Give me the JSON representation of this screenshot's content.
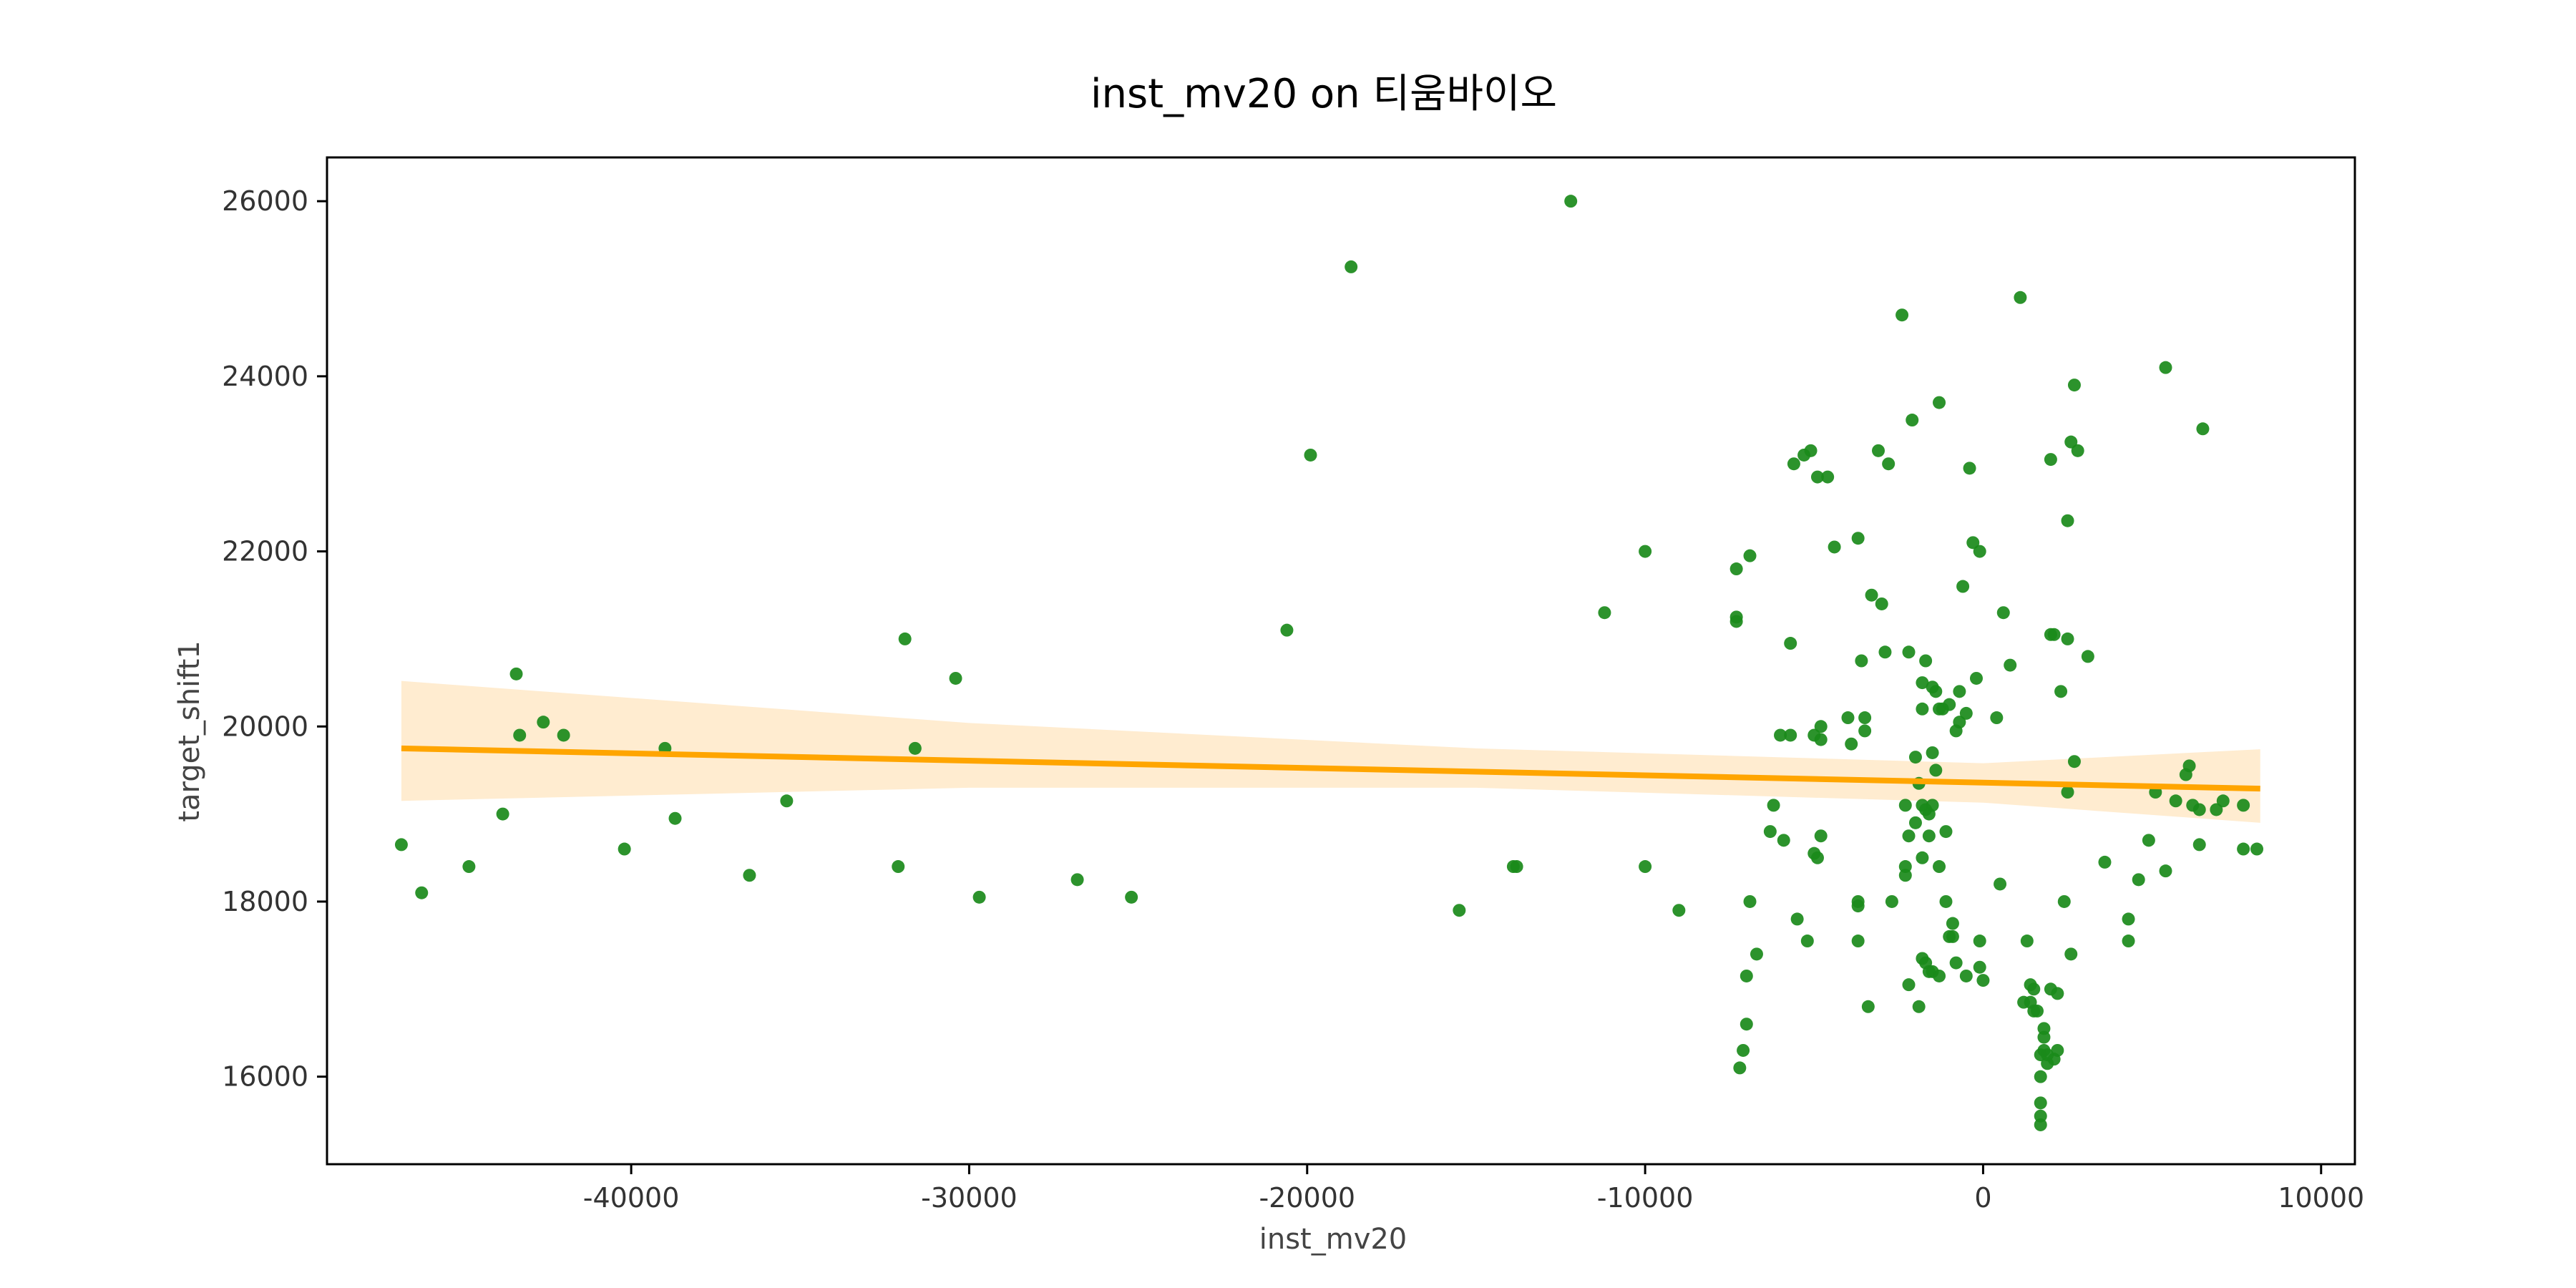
{
  "chart_data": {
    "type": "scatter",
    "title": "inst_mv20 on 티움바이오",
    "xlabel": "inst_mv20",
    "ylabel": "target_shift1",
    "xlim": [
      -49000,
      11000
    ],
    "ylim": [
      15000,
      26500
    ],
    "xticks": [
      -40000,
      -30000,
      -20000,
      -10000,
      0,
      10000
    ],
    "xtick_labels": [
      "-40000",
      "-30000",
      "-20000",
      "-10000",
      "0",
      "10000"
    ],
    "yticks": [
      16000,
      18000,
      20000,
      22000,
      24000,
      26000
    ],
    "ytick_labels": [
      "16000",
      "18000",
      "20000",
      "22000",
      "24000",
      "26000"
    ],
    "grid": false,
    "colors": {
      "points": "#1a8a1a",
      "regression": "#ffa500",
      "confidence_band": "#ffecd0"
    },
    "regression_line": {
      "x": [
        -46800,
        8200
      ],
      "y": [
        19750,
        19290
      ]
    },
    "confidence_band": {
      "x": [
        -46800,
        -30000,
        -15000,
        0,
        8200
      ],
      "lower": [
        19150,
        19300,
        19300,
        19130,
        18900
      ],
      "upper": [
        20520,
        20040,
        19750,
        19580,
        19740
      ]
    },
    "points": [
      [
        -46800,
        18650
      ],
      [
        -46200,
        18100
      ],
      [
        -44800,
        18400
      ],
      [
        -43800,
        19000
      ],
      [
        -43400,
        20600
      ],
      [
        -43300,
        19900
      ],
      [
        -42600,
        20050
      ],
      [
        -42000,
        19900
      ],
      [
        -40200,
        18600
      ],
      [
        -39000,
        19750
      ],
      [
        -38700,
        18950
      ],
      [
        -36500,
        18300
      ],
      [
        -35400,
        19150
      ],
      [
        -32100,
        18400
      ],
      [
        -31900,
        21000
      ],
      [
        -31600,
        19750
      ],
      [
        -30400,
        20550
      ],
      [
        -29700,
        18050
      ],
      [
        -26800,
        18250
      ],
      [
        -25200,
        18050
      ],
      [
        -20600,
        21100
      ],
      [
        -19900,
        23100
      ],
      [
        -18700,
        25250
      ],
      [
        -15500,
        17900
      ],
      [
        -13900,
        18400
      ],
      [
        -13800,
        18400
      ],
      [
        -12200,
        26000
      ],
      [
        -11200,
        21300
      ],
      [
        -10000,
        22000
      ],
      [
        -10000,
        18400
      ],
      [
        -9000,
        17900
      ],
      [
        -7300,
        21800
      ],
      [
        -7300,
        21250
      ],
      [
        -7300,
        21200
      ],
      [
        -7200,
        16100
      ],
      [
        -7100,
        16300
      ],
      [
        -7000,
        16600
      ],
      [
        -7000,
        17150
      ],
      [
        -6900,
        21950
      ],
      [
        -6900,
        18000
      ],
      [
        -6700,
        17400
      ],
      [
        -6300,
        18800
      ],
      [
        -6200,
        19100
      ],
      [
        -6000,
        19900
      ],
      [
        -5900,
        18700
      ],
      [
        -5700,
        20950
      ],
      [
        -5700,
        19900
      ],
      [
        -5600,
        23000
      ],
      [
        -5500,
        17800
      ],
      [
        -5300,
        23100
      ],
      [
        -5200,
        17550
      ],
      [
        -5100,
        23150
      ],
      [
        -5000,
        19900
      ],
      [
        -5000,
        18550
      ],
      [
        -4900,
        18500
      ],
      [
        -4900,
        22850
      ],
      [
        -4800,
        20000
      ],
      [
        -4800,
        19850
      ],
      [
        -4800,
        18750
      ],
      [
        -4600,
        22850
      ],
      [
        -4400,
        22050
      ],
      [
        -4000,
        20100
      ],
      [
        -3900,
        19800
      ],
      [
        -3700,
        22150
      ],
      [
        -3700,
        18000
      ],
      [
        -3700,
        17950
      ],
      [
        -3700,
        17550
      ],
      [
        -3600,
        20750
      ],
      [
        -3500,
        20100
      ],
      [
        -3500,
        19950
      ],
      [
        -3400,
        16800
      ],
      [
        -3300,
        21500
      ],
      [
        -3100,
        23150
      ],
      [
        -3000,
        21400
      ],
      [
        -2900,
        20850
      ],
      [
        -2800,
        23000
      ],
      [
        -2700,
        18000
      ],
      [
        -2400,
        24700
      ],
      [
        -2300,
        18400
      ],
      [
        -2300,
        18300
      ],
      [
        -2300,
        19100
      ],
      [
        -2200,
        20850
      ],
      [
        -2200,
        18750
      ],
      [
        -2200,
        17050
      ],
      [
        -2100,
        23500
      ],
      [
        -2000,
        19650
      ],
      [
        -2000,
        18900
      ],
      [
        -1900,
        19350
      ],
      [
        -1900,
        16800
      ],
      [
        -1800,
        20500
      ],
      [
        -1800,
        20200
      ],
      [
        -1800,
        19100
      ],
      [
        -1800,
        18500
      ],
      [
        -1800,
        17350
      ],
      [
        -1700,
        20750
      ],
      [
        -1700,
        19050
      ],
      [
        -1700,
        17300
      ],
      [
        -1600,
        19000
      ],
      [
        -1600,
        18750
      ],
      [
        -1600,
        17200
      ],
      [
        -1500,
        20450
      ],
      [
        -1500,
        19700
      ],
      [
        -1500,
        19100
      ],
      [
        -1500,
        17200
      ],
      [
        -1400,
        20400
      ],
      [
        -1400,
        19500
      ],
      [
        -1300,
        23700
      ],
      [
        -1300,
        20200
      ],
      [
        -1300,
        18400
      ],
      [
        -1300,
        17150
      ],
      [
        -1200,
        20200
      ],
      [
        -1100,
        18800
      ],
      [
        -1100,
        18000
      ],
      [
        -1000,
        20250
      ],
      [
        -1000,
        17600
      ],
      [
        -900,
        17750
      ],
      [
        -900,
        17600
      ],
      [
        -800,
        19950
      ],
      [
        -800,
        17300
      ],
      [
        -700,
        20400
      ],
      [
        -700,
        20050
      ],
      [
        -600,
        21600
      ],
      [
        -500,
        17150
      ],
      [
        -500,
        20150
      ],
      [
        -400,
        22950
      ],
      [
        -300,
        22100
      ],
      [
        -200,
        20550
      ],
      [
        -100,
        22000
      ],
      [
        -100,
        17550
      ],
      [
        -100,
        17250
      ],
      [
        0,
        17100
      ],
      [
        400,
        20100
      ],
      [
        500,
        18200
      ],
      [
        600,
        21300
      ],
      [
        800,
        20700
      ],
      [
        1100,
        24900
      ],
      [
        1200,
        16850
      ],
      [
        1300,
        17550
      ],
      [
        1400,
        16850
      ],
      [
        1400,
        17050
      ],
      [
        1500,
        17000
      ],
      [
        1500,
        16750
      ],
      [
        1600,
        16750
      ],
      [
        1700,
        15700
      ],
      [
        1700,
        15550
      ],
      [
        1700,
        15450
      ],
      [
        1700,
        16250
      ],
      [
        1700,
        16000
      ],
      [
        1800,
        16550
      ],
      [
        1800,
        16450
      ],
      [
        1800,
        16300
      ],
      [
        1900,
        16150
      ],
      [
        1900,
        16250
      ],
      [
        2000,
        17000
      ],
      [
        2000,
        23050
      ],
      [
        2000,
        21050
      ],
      [
        2100,
        21050
      ],
      [
        2100,
        16200
      ],
      [
        2200,
        16950
      ],
      [
        2200,
        16300
      ],
      [
        2300,
        20400
      ],
      [
        2400,
        18000
      ],
      [
        2500,
        21000
      ],
      [
        2500,
        19250
      ],
      [
        2500,
        22350
      ],
      [
        2600,
        17400
      ],
      [
        2600,
        23250
      ],
      [
        2700,
        19600
      ],
      [
        2700,
        23900
      ],
      [
        2800,
        23150
      ],
      [
        3100,
        20800
      ],
      [
        3600,
        18450
      ],
      [
        4300,
        17800
      ],
      [
        4300,
        17550
      ],
      [
        4600,
        18250
      ],
      [
        4900,
        18700
      ],
      [
        5100,
        19250
      ],
      [
        5400,
        18350
      ],
      [
        5400,
        24100
      ],
      [
        5700,
        19150
      ],
      [
        6000,
        19450
      ],
      [
        6100,
        19550
      ],
      [
        6200,
        19100
      ],
      [
        6400,
        18650
      ],
      [
        6400,
        19050
      ],
      [
        6500,
        23400
      ],
      [
        6900,
        19050
      ],
      [
        7100,
        19150
      ],
      [
        7700,
        19100
      ],
      [
        7700,
        18600
      ],
      [
        8100,
        18600
      ]
    ]
  }
}
